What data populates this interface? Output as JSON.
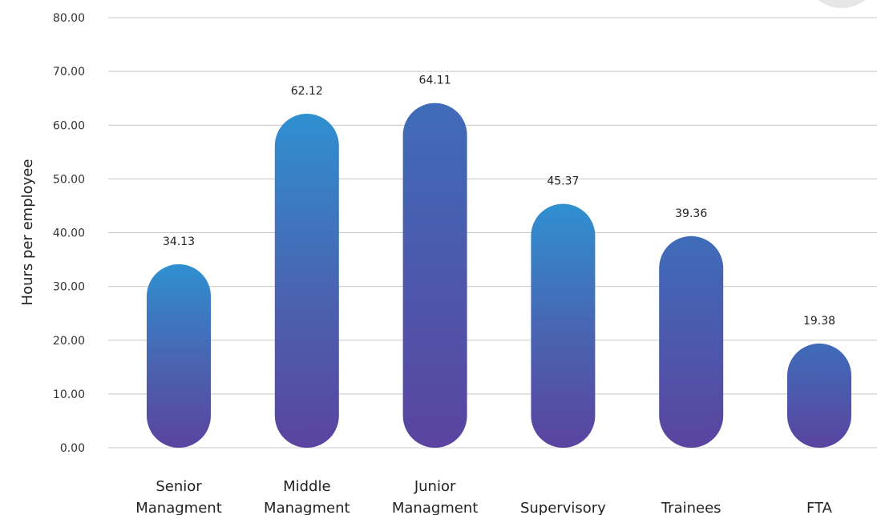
{
  "chart_data": {
    "type": "bar",
    "categories": [
      [
        "Senior",
        "Managment"
      ],
      [
        "Middle",
        "Managment"
      ],
      [
        "Junior",
        "Managment"
      ],
      [
        "Supervisory"
      ],
      [
        "Trainees"
      ],
      [
        "FTA"
      ]
    ],
    "values": [
      34.13,
      62.12,
      64.11,
      45.37,
      39.36,
      19.38
    ],
    "value_labels": [
      "34.13",
      "62.12",
      "64.11",
      "45.37",
      "39.36",
      "19.38"
    ],
    "ylabel": "Hours per employee",
    "ylim": [
      0,
      80
    ],
    "yticks": [
      "0.00",
      "10.00",
      "20.00",
      "30.00",
      "40.00",
      "50.00",
      "60.00",
      "70.00",
      "80.00"
    ],
    "grid": true,
    "colors": {
      "bar_top": "#2f90d0",
      "bar_mid": "#4a62b0",
      "bar_bottom": "#5a44a0",
      "bar_top_alt": "#3f6cb8",
      "grid": "#c8c8c8"
    }
  }
}
